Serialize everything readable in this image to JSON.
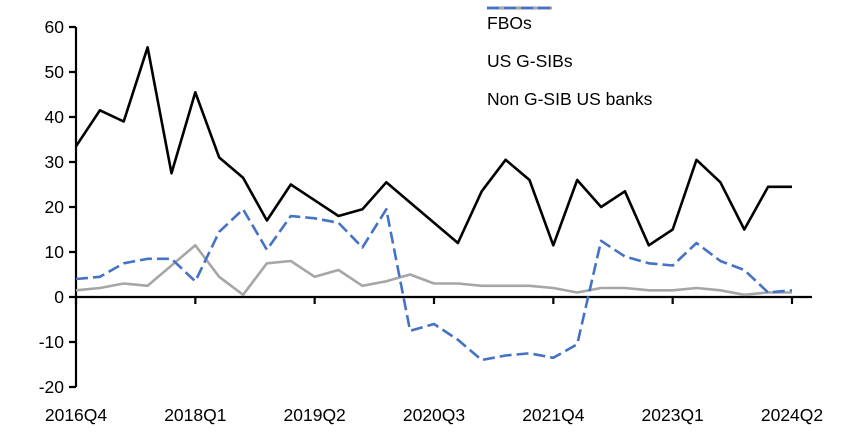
{
  "chart_data": {
    "type": "line",
    "title": "",
    "xlabel": "",
    "ylabel": "",
    "grid": false,
    "legend_position": "top-right",
    "categories": [
      "2016Q4",
      "2017Q1",
      "2017Q2",
      "2017Q3",
      "2017Q4",
      "2018Q1",
      "2018Q2",
      "2018Q3",
      "2018Q4",
      "2019Q1",
      "2019Q2",
      "2019Q3",
      "2019Q4",
      "2020Q1",
      "2020Q2",
      "2020Q3",
      "2020Q4",
      "2021Q1",
      "2021Q2",
      "2021Q3",
      "2021Q4",
      "2022Q1",
      "2022Q2",
      "2022Q3",
      "2022Q4",
      "2023Q1",
      "2023Q2",
      "2023Q3",
      "2023Q4",
      "2024Q1",
      "2024Q2"
    ],
    "x_tick_labels": [
      "2016Q4",
      "2018Q1",
      "2019Q2",
      "2020Q3",
      "2021Q4",
      "2023Q1",
      "2024Q2"
    ],
    "y_axis": {
      "min": -20,
      "max": 60,
      "step": 10
    },
    "series": [
      {
        "name": "FBOs",
        "color": "#000000",
        "style": "solid",
        "values": [
          33.5,
          41.5,
          39,
          55.5,
          27.5,
          45.5,
          31,
          26.5,
          17,
          25,
          21.5,
          18,
          19.5,
          25.5,
          21,
          16.5,
          12,
          23.5,
          30.5,
          26,
          11.5,
          26,
          20,
          23.5,
          11.5,
          15,
          30.5,
          25.5,
          15,
          24.5,
          24.5
        ]
      },
      {
        "name": "US G-SIBs",
        "color": "#A6A6A6",
        "style": "solid",
        "values": [
          1.5,
          2,
          3,
          2.5,
          7,
          11.5,
          4.5,
          0.5,
          7.5,
          8,
          4.5,
          6,
          2.5,
          3.5,
          5,
          3,
          3,
          2.5,
          2.5,
          2.5,
          2,
          1,
          2,
          2,
          1.5,
          1.5,
          2,
          1.5,
          0.5,
          1,
          1
        ]
      },
      {
        "name": "Non G-SIB US banks",
        "color": "#4472C4",
        "style": "dashed",
        "values": [
          4,
          4.5,
          7.5,
          8.5,
          8.5,
          3.5,
          14.5,
          19.5,
          10.5,
          18,
          17.5,
          16.5,
          11,
          19.5,
          -7.5,
          -6,
          -9.5,
          -14,
          -13,
          -12.5,
          -13.5,
          -10.5,
          12.5,
          9,
          7.5,
          7,
          12,
          8,
          6,
          1,
          1.5
        ]
      }
    ]
  }
}
